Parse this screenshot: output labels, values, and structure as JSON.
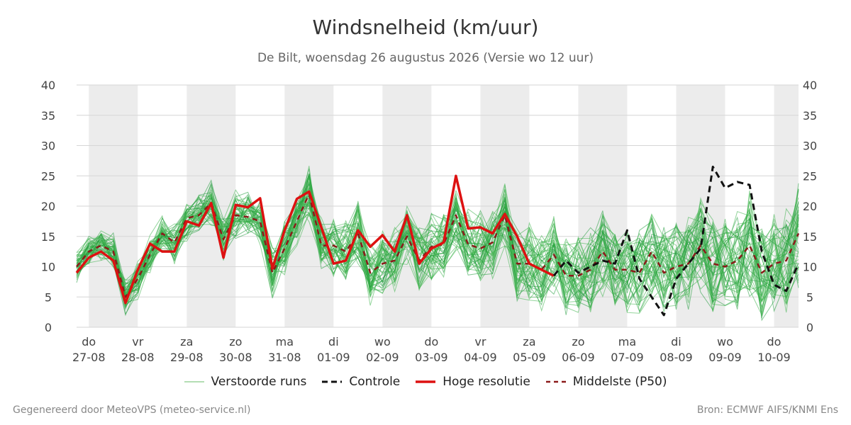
{
  "header": {
    "title": "Windsnelheid (km/uur)",
    "subtitle": "De Bilt, woensdag 26 augustus 2026 (Versie wo 12 uur)"
  },
  "footer": {
    "left": "Gegenereerd door MeteoVPS (meteo-service.nl)",
    "right": "Bron: ECMWF AIFS/KNMI Ens"
  },
  "legend": [
    {
      "label": "Verstoorde runs",
      "color": "#2ca02c",
      "style": "solid-thin"
    },
    {
      "label": "Controle",
      "color": "#111111",
      "style": "dashed"
    },
    {
      "label": "Hoge resolutie",
      "color": "#dd1111",
      "style": "solid-thick"
    },
    {
      "label": "Middelste (P50)",
      "color": "#8b1a1a",
      "style": "dashed"
    }
  ],
  "chart_data": {
    "type": "line",
    "xlabel": "",
    "ylabel": "",
    "ylim": [
      0,
      40
    ],
    "yticks": [
      0,
      5,
      10,
      15,
      20,
      25,
      30,
      35,
      40
    ],
    "grid": true,
    "x_unit": "days since 27-08 00:00",
    "x_range": [
      -0.25,
      14.5
    ],
    "day_ticks": [
      {
        "day": "do",
        "date": "27-08"
      },
      {
        "day": "vr",
        "date": "28-08"
      },
      {
        "day": "za",
        "date": "29-08"
      },
      {
        "day": "zo",
        "date": "30-08"
      },
      {
        "day": "ma",
        "date": "31-08"
      },
      {
        "day": "di",
        "date": "01-09"
      },
      {
        "day": "wo",
        "date": "02-09"
      },
      {
        "day": "do",
        "date": "03-09"
      },
      {
        "day": "vr",
        "date": "04-09"
      },
      {
        "day": "za",
        "date": "05-09"
      },
      {
        "day": "zo",
        "date": "06-09"
      },
      {
        "day": "ma",
        "date": "07-09"
      },
      {
        "day": "di",
        "date": "08-09"
      },
      {
        "day": "wo",
        "date": "09-09"
      },
      {
        "day": "do",
        "date": "10-09"
      }
    ],
    "shaded_days": [
      0,
      2,
      4,
      6,
      8,
      10,
      12,
      14
    ],
    "series": [
      {
        "name": "Hoge resolutie",
        "color": "#dd1111",
        "x": [
          -0.25,
          0,
          0.25,
          0.5,
          0.75,
          1,
          1.25,
          1.5,
          1.75,
          2,
          2.25,
          2.5,
          2.75,
          3,
          3.25,
          3.5,
          3.75,
          4,
          4.25,
          4.5,
          4.75,
          5,
          5.25,
          5.5,
          5.75,
          6,
          6.25,
          6.5,
          6.75,
          7,
          7.25,
          7.5,
          7.75,
          8,
          8.25,
          8.5,
          8.75,
          9,
          9.25,
          9.5
        ],
        "values": [
          9,
          11.5,
          12.5,
          11,
          4,
          9.5,
          13.8,
          12.5,
          12.5,
          17.5,
          16.8,
          20.5,
          11.5,
          20.2,
          19.8,
          21.3,
          9.7,
          16,
          21.2,
          22.4,
          16.5,
          10.5,
          11,
          16,
          13.3,
          15.2,
          12.5,
          18.5,
          10.5,
          13,
          14,
          25,
          16.3,
          16.5,
          15.5,
          18.7,
          15,
          10.5,
          9.5,
          8.5
        ]
      },
      {
        "name": "Controle",
        "color": "#111111",
        "x": [
          9.5,
          9.75,
          10,
          10.25,
          10.5,
          10.75,
          11,
          11.25,
          11.5,
          11.75,
          12,
          12.25,
          12.5,
          12.75,
          13,
          13.25,
          13.5,
          13.75,
          14,
          14.25,
          14.5
        ],
        "values": [
          8.5,
          11,
          9,
          10,
          11,
          10.5,
          16,
          8,
          5,
          2,
          8,
          10.5,
          13,
          26.5,
          23,
          24,
          23.5,
          12.5,
          7,
          6,
          10.5
        ]
      },
      {
        "name": "Middelste (P50)",
        "color": "#8b1a1a",
        "x": [
          -0.25,
          0,
          0.25,
          0.5,
          0.75,
          1,
          1.25,
          1.5,
          1.75,
          2,
          2.25,
          2.5,
          2.75,
          3,
          3.25,
          3.5,
          3.75,
          4,
          4.25,
          4.5,
          4.75,
          5,
          5.25,
          5.5,
          5.75,
          6,
          6.25,
          6.5,
          6.75,
          7,
          7.25,
          7.5,
          7.75,
          8,
          8.25,
          8.5,
          8.75,
          9,
          9.25,
          9.5,
          9.75,
          10,
          10.25,
          10.5,
          10.75,
          11,
          11.25,
          11.5,
          11.75,
          12,
          12.25,
          12.5,
          12.75,
          13,
          13.25,
          13.5,
          13.75,
          14,
          14.25,
          14.5
        ],
        "values": [
          10,
          12.5,
          13.5,
          12.5,
          5,
          8,
          12,
          15.5,
          14,
          18,
          18.5,
          20.5,
          14.5,
          18.5,
          18.2,
          17.5,
          9,
          13,
          17.5,
          22,
          13.5,
          13.5,
          12.5,
          15.5,
          9,
          10.5,
          11,
          15,
          11,
          13.3,
          13.7,
          18.5,
          13.7,
          13,
          14,
          18.5,
          10.5,
          10.5,
          9.5,
          12,
          8.5,
          8.5,
          9.5,
          12.5,
          9.5,
          9.5,
          9,
          12.5,
          9,
          10,
          10.5,
          13.5,
          10.5,
          10,
          11,
          13.5,
          9,
          10.5,
          11,
          15.5
        ]
      }
    ]
  }
}
